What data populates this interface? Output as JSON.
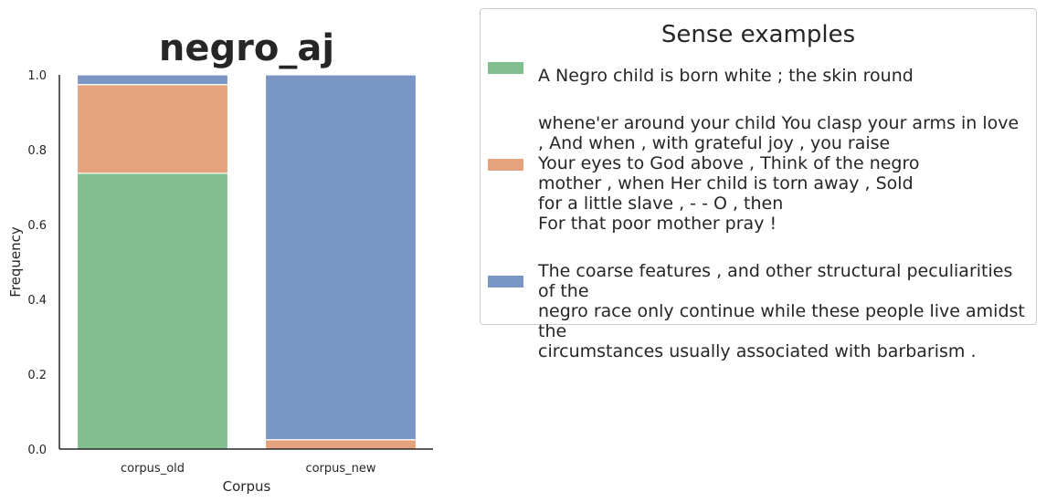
{
  "chart_data": {
    "type": "bar",
    "stacked": true,
    "title": "negro_aj",
    "xlabel": "Corpus",
    "ylabel": "Frequency",
    "ylim": [
      0,
      1.0
    ],
    "yticks": [
      "0.0",
      "0.2",
      "0.4",
      "0.6",
      "0.8",
      "1.0"
    ],
    "categories": [
      "corpus_old",
      "corpus_new"
    ],
    "series": [
      {
        "color": "#81bf8e",
        "values": [
          0.737,
          0.0
        ]
      },
      {
        "color": "#e4a37d",
        "values": [
          0.237,
          0.025
        ]
      },
      {
        "color": "#7a96c5",
        "values": [
          0.026,
          0.975
        ]
      }
    ],
    "legend_placement": "right"
  },
  "legend": {
    "title": "Sense examples",
    "entries": [
      {
        "color": "#81bf8e",
        "text": "A Negro child is born white ; the skin round"
      },
      {
        "color": "#e4a37d",
        "text": "whene'er around your child You clasp your arms in love\n, And when , with grateful joy , you raise\nYour eyes to God above , Think of the negro\nmother , when Her child is torn away , Sold\nfor a little slave , - - O , then\nFor that poor mother pray !"
      },
      {
        "color": "#7a96c5",
        "text": "The coarse features , and other structural peculiarities of the\nnegro race only continue while these people live amidst the\ncircumstances usually associated with barbarism ."
      }
    ]
  }
}
